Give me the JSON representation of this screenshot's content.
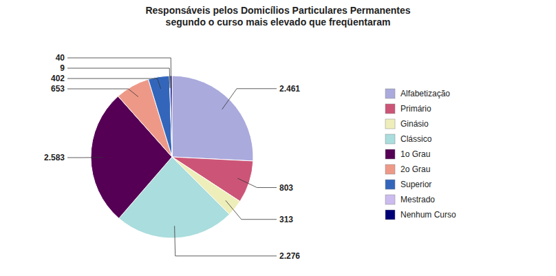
{
  "chart_data": {
    "type": "pie",
    "title": "Responsáveis pelos Domicílios Particulares Permanentes\nsegundo o curso mais elevado que freqüentaram",
    "categories": [
      "Alfabetização",
      "Primário",
      "Ginásio",
      "Clássico",
      "1o Grau",
      "2o Grau",
      "Superior",
      "Mestrado",
      "Nenhum Curso"
    ],
    "values": [
      2461,
      803,
      313,
      2276,
      2583,
      653,
      402,
      9,
      40
    ],
    "value_labels": [
      "2.461",
      "803",
      "313",
      "2.276",
      "2.583",
      "653",
      "402",
      "9",
      "40"
    ],
    "colors": [
      "#aaaadd",
      "#cc5577",
      "#eeeebb",
      "#aadddd",
      "#550055",
      "#ee9988",
      "#3366bb",
      "#ccbbee",
      "#000077"
    ],
    "legend": "right",
    "data_labels": true
  }
}
